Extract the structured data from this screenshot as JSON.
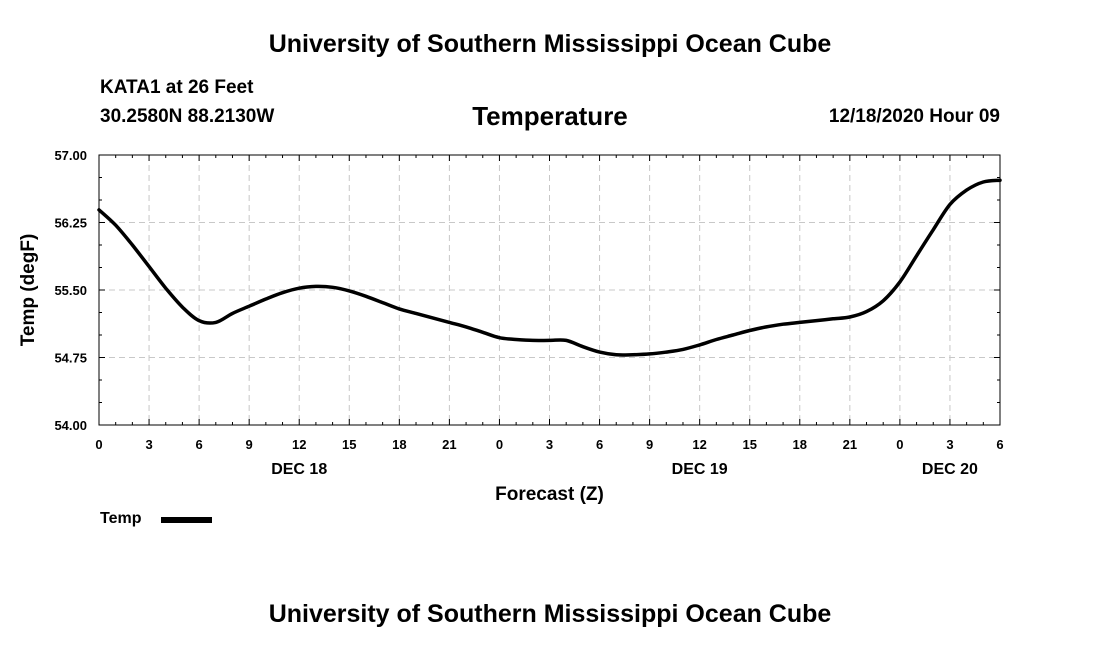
{
  "header": {
    "title": "University of Southern Mississippi Ocean Cube",
    "station": "KATA1 at 26 Feet",
    "coordinates": "30.2580N 88.2130W",
    "chart_title": "Temperature",
    "issued": "12/18/2020 Hour 09"
  },
  "footer": {
    "title": "University of Southern Mississippi Ocean Cube"
  },
  "legend": {
    "label": "Temp",
    "color": "#000000"
  },
  "chart_data": {
    "type": "line",
    "title": "Temperature",
    "xlabel": "Forecast (Z)",
    "ylabel": "Temp (degF)",
    "xlim": [
      0,
      54
    ],
    "ylim": [
      54.0,
      57.0
    ],
    "grid": true,
    "legend_position": "bottom-left",
    "x_ticks": [
      0,
      3,
      6,
      9,
      12,
      15,
      18,
      21,
      24,
      27,
      30,
      33,
      36,
      39,
      42,
      45,
      48,
      51,
      54
    ],
    "x_tick_labels": [
      "0",
      "3",
      "6",
      "9",
      "12",
      "15",
      "18",
      "21",
      "0",
      "3",
      "6",
      "9",
      "12",
      "15",
      "18",
      "21",
      "0",
      "3",
      "6"
    ],
    "y_ticks": [
      54.0,
      54.75,
      55.5,
      56.25,
      57.0
    ],
    "y_tick_labels": [
      "54.00",
      "54.75",
      "55.50",
      "56.25",
      "57.00"
    ],
    "day_labels": [
      {
        "x": 12,
        "label": "DEC 18"
      },
      {
        "x": 36,
        "label": "DEC 19"
      },
      {
        "x": 51,
        "label": "DEC 20"
      }
    ],
    "series": [
      {
        "name": "Temp",
        "x": [
          0,
          1,
          2,
          3,
          4,
          5,
          6,
          7,
          8,
          9,
          10,
          11,
          12,
          13,
          14,
          15,
          16,
          17,
          18,
          19,
          20,
          21,
          22,
          23,
          24,
          25,
          26,
          27,
          28,
          29,
          30,
          31,
          32,
          33,
          34,
          35,
          36,
          37,
          38,
          39,
          40,
          41,
          42,
          43,
          44,
          45,
          46,
          47,
          48,
          49,
          50,
          51,
          52,
          53,
          54
        ],
        "values": [
          56.39,
          56.22,
          56.0,
          55.76,
          55.52,
          55.31,
          55.16,
          55.14,
          55.24,
          55.32,
          55.4,
          55.47,
          55.52,
          55.54,
          55.53,
          55.49,
          55.43,
          55.36,
          55.29,
          55.24,
          55.19,
          55.14,
          55.09,
          55.03,
          54.97,
          54.95,
          54.94,
          54.94,
          54.94,
          54.87,
          54.81,
          54.78,
          54.78,
          54.79,
          54.81,
          54.84,
          54.89,
          54.95,
          55.0,
          55.05,
          55.09,
          55.12,
          55.14,
          55.16,
          55.18,
          55.2,
          55.26,
          55.38,
          55.59,
          55.88,
          56.17,
          56.45,
          56.61,
          56.7,
          56.72
        ]
      }
    ]
  }
}
